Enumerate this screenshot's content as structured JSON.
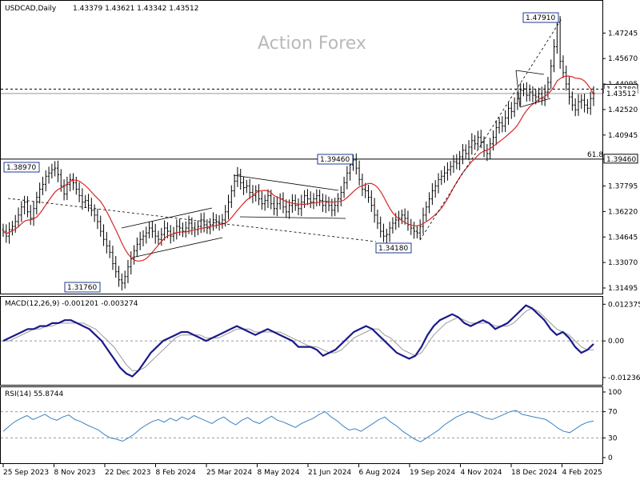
{
  "header": {
    "symbol": "USDCAD,Daily",
    "ohlc": "1.43379 1.43621 1.43342 1.43512"
  },
  "watermark": "Action Forex",
  "colors": {
    "candles": "#000000",
    "ma": "#d62728",
    "macd": "#1a1a8c",
    "signal": "#9a9a9a",
    "rsi": "#3b82c4",
    "box_border": "#1f3a8f",
    "level_line": "#000000"
  },
  "chart_data": [
    {
      "type": "line",
      "panel": "price",
      "title": "USDCAD,Daily",
      "ylim": [
        1.31495,
        1.482
      ],
      "y_ticks": [
        "1.47245",
        "1.45670",
        "1.44095",
        "1.42520",
        "1.40945",
        "1.39460",
        "1.37795",
        "1.36220",
        "1.34645",
        "1.33070",
        "1.31495"
      ],
      "current_labels": [
        "1.43780",
        "1.43512"
      ],
      "horizontal_levels": [
        1.4378,
        1.43512,
        1.3946
      ],
      "fib_label": "61.8",
      "annotations": [
        "1.38970",
        "1.31760",
        "1.39460",
        "1.34180",
        "1.47910"
      ],
      "x_labels": [
        "25 Sep 2023",
        "8 Nov 2023",
        "22 Dec 2023",
        "8 Feb 2024",
        "25 Mar 2024",
        "8 May 2024",
        "21 Jun 2024",
        "6 Aug 2024",
        "19 Sep 2024",
        "4 Nov 2024",
        "18 Dec 2024",
        "4 Feb 2025"
      ],
      "series": [
        {
          "kind": "close",
          "values": [
            1.35,
            1.347,
            1.351,
            1.353,
            1.356,
            1.36,
            1.365,
            1.368,
            1.362,
            1.358,
            1.364,
            1.371,
            1.376,
            1.379,
            1.384,
            1.386,
            1.388,
            1.389,
            1.385,
            1.378,
            1.373,
            1.379,
            1.382,
            1.38,
            1.376,
            1.372,
            1.368,
            1.369,
            1.366,
            1.363,
            1.36,
            1.356,
            1.35,
            1.345,
            1.341,
            1.337,
            1.33,
            1.325,
            1.32,
            1.318,
            1.322,
            1.328,
            1.333,
            1.338,
            1.342,
            1.345,
            1.347,
            1.349,
            1.352,
            1.35,
            1.347,
            1.345,
            1.348,
            1.352,
            1.35,
            1.347,
            1.349,
            1.353,
            1.352,
            1.35,
            1.352,
            1.355,
            1.352,
            1.351,
            1.353,
            1.357,
            1.354,
            1.352,
            1.354,
            1.357,
            1.356,
            1.355,
            1.357,
            1.362,
            1.368,
            1.375,
            1.381,
            1.385,
            1.38,
            1.377,
            1.378,
            1.374,
            1.372,
            1.375,
            1.37,
            1.367,
            1.369,
            1.372,
            1.367,
            1.364,
            1.367,
            1.37,
            1.365,
            1.362,
            1.366,
            1.369,
            1.366,
            1.364,
            1.368,
            1.372,
            1.37,
            1.368,
            1.37,
            1.372,
            1.369,
            1.366,
            1.368,
            1.366,
            1.363,
            1.366,
            1.37,
            1.374,
            1.38,
            1.386,
            1.391,
            1.394,
            1.389,
            1.382,
            1.376,
            1.375,
            1.371,
            1.366,
            1.36,
            1.355,
            1.35,
            1.347,
            1.348,
            1.352,
            1.355,
            1.357,
            1.358,
            1.36,
            1.358,
            1.354,
            1.352,
            1.35,
            1.349,
            1.353,
            1.36,
            1.365,
            1.37,
            1.375,
            1.378,
            1.382,
            1.384,
            1.386,
            1.388,
            1.39,
            1.393,
            1.392,
            1.396,
            1.4,
            1.398,
            1.402,
            1.406,
            1.404,
            1.408,
            1.405,
            1.4,
            1.398,
            1.404,
            1.408,
            1.414,
            1.417,
            1.415,
            1.42,
            1.426,
            1.424,
            1.429,
            1.432,
            1.437,
            1.438,
            1.434,
            1.436,
            1.434,
            1.433,
            1.435,
            1.432,
            1.436,
            1.442,
            1.452,
            1.464,
            1.479,
            1.455,
            1.448,
            1.441,
            1.433,
            1.428,
            1.425,
            1.43,
            1.431,
            1.428,
            1.426,
            1.432,
            1.435
          ],
          "source": "approximate"
        }
      ]
    },
    {
      "type": "line",
      "panel": "macd",
      "title": "MACD(12,26,9) -0.001201 -0.003274",
      "ylim": [
        -0.014,
        0.013
      ],
      "y_ticks": [
        "0.012375",
        "0.00",
        "-0.012367"
      ],
      "series": [
        {
          "name": "MACD",
          "values": [
            0.0,
            0.001,
            0.002,
            0.003,
            0.004,
            0.004,
            0.005,
            0.005,
            0.006,
            0.006,
            0.007,
            0.007,
            0.006,
            0.005,
            0.004,
            0.002,
            0.0,
            -0.003,
            -0.006,
            -0.009,
            -0.011,
            -0.012,
            -0.01,
            -0.007,
            -0.004,
            -0.002,
            0.0,
            0.001,
            0.002,
            0.003,
            0.003,
            0.002,
            0.001,
            0.0,
            0.001,
            0.002,
            0.003,
            0.004,
            0.005,
            0.004,
            0.003,
            0.002,
            0.003,
            0.004,
            0.003,
            0.002,
            0.001,
            0.0,
            -0.002,
            -0.002,
            -0.002,
            -0.003,
            -0.005,
            -0.004,
            -0.003,
            -0.001,
            0.001,
            0.003,
            0.004,
            0.005,
            0.004,
            0.002,
            0.0,
            -0.002,
            -0.004,
            -0.005,
            -0.006,
            -0.005,
            -0.002,
            0.002,
            0.005,
            0.007,
            0.008,
            0.009,
            0.008,
            0.006,
            0.005,
            0.006,
            0.007,
            0.006,
            0.004,
            0.005,
            0.006,
            0.008,
            0.01,
            0.012,
            0.011,
            0.009,
            0.007,
            0.004,
            0.002,
            0.003,
            0.001,
            -0.002,
            -0.004,
            -0.003,
            -0.001
          ]
        },
        {
          "name": "Signal",
          "values": [
            0.0,
            0.0,
            0.001,
            0.002,
            0.003,
            0.004,
            0.004,
            0.005,
            0.005,
            0.006,
            0.006,
            0.006,
            0.006,
            0.006,
            0.005,
            0.004,
            0.002,
            0.0,
            -0.002,
            -0.005,
            -0.008,
            -0.01,
            -0.01,
            -0.009,
            -0.007,
            -0.005,
            -0.003,
            -0.001,
            0.001,
            0.002,
            0.002,
            0.002,
            0.002,
            0.001,
            0.001,
            0.001,
            0.002,
            0.003,
            0.004,
            0.004,
            0.004,
            0.003,
            0.003,
            0.003,
            0.003,
            0.003,
            0.002,
            0.001,
            0.0,
            -0.001,
            -0.002,
            -0.002,
            -0.003,
            -0.004,
            -0.004,
            -0.003,
            -0.001,
            0.001,
            0.002,
            0.003,
            0.004,
            0.004,
            0.002,
            0.001,
            -0.001,
            -0.003,
            -0.004,
            -0.005,
            -0.004,
            -0.001,
            0.002,
            0.004,
            0.006,
            0.007,
            0.008,
            0.007,
            0.006,
            0.006,
            0.006,
            0.006,
            0.005,
            0.005,
            0.005,
            0.006,
            0.008,
            0.01,
            0.011,
            0.01,
            0.008,
            0.006,
            0.004,
            0.003,
            0.002,
            0.0,
            -0.002,
            -0.003,
            -0.003
          ]
        }
      ]
    },
    {
      "type": "line",
      "panel": "rsi",
      "title": "RSI(14) 55.8744",
      "ylim": [
        0,
        100
      ],
      "y_ticks": [
        "100",
        "70",
        "30",
        "0"
      ],
      "series": [
        {
          "name": "RSI",
          "values": [
            40,
            48,
            55,
            60,
            64,
            58,
            62,
            66,
            60,
            57,
            62,
            65,
            58,
            55,
            50,
            46,
            42,
            35,
            30,
            28,
            25,
            30,
            36,
            44,
            50,
            55,
            58,
            54,
            60,
            56,
            62,
            58,
            64,
            60,
            56,
            52,
            58,
            62,
            55,
            50,
            57,
            61,
            55,
            52,
            58,
            63,
            57,
            54,
            50,
            46,
            52,
            56,
            60,
            66,
            70,
            62,
            56,
            48,
            42,
            44,
            40,
            46,
            52,
            58,
            62,
            54,
            48,
            40,
            34,
            28,
            24,
            30,
            36,
            42,
            50,
            56,
            62,
            66,
            70,
            68,
            64,
            60,
            58,
            62,
            66,
            70,
            72,
            66,
            64,
            62,
            60,
            58,
            52,
            45,
            40,
            38,
            44,
            50,
            54,
            55.87
          ]
        }
      ]
    }
  ]
}
